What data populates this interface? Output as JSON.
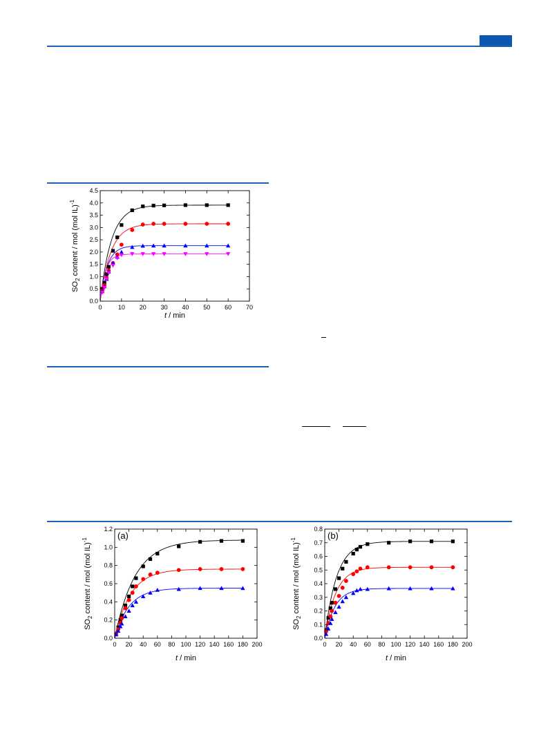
{
  "page": {
    "brand_color": "#0b57b2",
    "rule_color": "#1f5fb0"
  },
  "chart_data": [
    {
      "id": "fig1",
      "type": "line",
      "panel_label": "",
      "xlabel_italic": "t",
      "xlabel_rest": " / min",
      "ylabel_main": "SO",
      "ylabel_sub": "2",
      "ylabel_mid": " content / mol (mol IL)",
      "ylabel_sup": "-1",
      "xlim": [
        0,
        70
      ],
      "ylim": [
        0,
        4.5
      ],
      "xticks": [
        0,
        10,
        20,
        30,
        40,
        50,
        60,
        70
      ],
      "yticks": [
        0.0,
        0.5,
        1.0,
        1.5,
        2.0,
        2.5,
        3.0,
        3.5,
        4.0,
        4.5
      ],
      "xtick_labels": [
        "0",
        "10",
        "20",
        "30",
        "40",
        "50",
        "60",
        "70"
      ],
      "ytick_labels": [
        "0.0",
        "0.5",
        "1.0",
        "1.5",
        "2.0",
        "2.5",
        "3.0",
        "3.5",
        "4.0",
        "4.5"
      ],
      "grid": false,
      "series": [
        {
          "color": "#000000",
          "marker": "square",
          "equilibrium": 3.91,
          "k": 0.19,
          "x": [
            1,
            2,
            3,
            4,
            6,
            8,
            10,
            15,
            20,
            25,
            30,
            40,
            50,
            60
          ],
          "y": [
            0.5,
            0.75,
            1.1,
            1.4,
            2.05,
            2.6,
            3.1,
            3.7,
            3.86,
            3.89,
            3.9,
            3.91,
            3.91,
            3.91
          ]
        },
        {
          "color": "#ff0000",
          "marker": "circle",
          "equilibrium": 3.15,
          "k": 0.2,
          "x": [
            1,
            2,
            3,
            4,
            6,
            8,
            10,
            15,
            20,
            25,
            30,
            40,
            50,
            60
          ],
          "y": [
            0.45,
            0.65,
            0.95,
            1.25,
            1.55,
            1.9,
            2.3,
            2.9,
            3.12,
            3.15,
            3.15,
            3.15,
            3.15,
            3.15
          ]
        },
        {
          "color": "#0000ff",
          "marker": "triangle-up",
          "equilibrium": 2.26,
          "k": 0.3,
          "x": [
            1,
            2,
            3,
            4,
            6,
            8,
            10,
            15,
            20,
            25,
            30,
            40,
            50,
            60
          ],
          "y": [
            0.4,
            0.6,
            0.9,
            1.2,
            1.55,
            1.8,
            2.0,
            2.2,
            2.25,
            2.26,
            2.26,
            2.26,
            2.26,
            2.26
          ]
        },
        {
          "color": "#ff00ff",
          "marker": "triangle-down",
          "equilibrium": 1.92,
          "k": 0.4,
          "x": [
            1,
            2,
            3,
            4,
            6,
            8,
            10,
            15,
            20,
            25,
            30,
            40,
            50,
            60
          ],
          "y": [
            0.35,
            0.55,
            0.9,
            1.15,
            1.45,
            1.75,
            1.88,
            1.92,
            1.92,
            1.92,
            1.92,
            1.92,
            1.92,
            1.92
          ]
        }
      ]
    },
    {
      "id": "fig2a",
      "type": "line",
      "panel_label": "(a)",
      "xlabel_italic": "t",
      "xlabel_rest": " / min",
      "ylabel_main": "SO",
      "ylabel_sub": "2",
      "ylabel_mid": " content / mol (mol IL)",
      "ylabel_sup": "-1",
      "xlim": [
        0,
        200
      ],
      "ylim": [
        0,
        1.2
      ],
      "xticks": [
        0,
        20,
        40,
        60,
        80,
        100,
        120,
        140,
        160,
        180,
        200
      ],
      "yticks": [
        0.0,
        0.2,
        0.4,
        0.6,
        0.8,
        1.0,
        1.2
      ],
      "xtick_labels": [
        "0",
        "20",
        "40",
        "60",
        "80",
        "100",
        "120",
        "140",
        "160",
        "180",
        "200"
      ],
      "ytick_labels": [
        "0.0",
        "0.2",
        "0.4",
        "0.6",
        "0.8",
        "1.0",
        "1.2"
      ],
      "grid": false,
      "series": [
        {
          "color": "#000000",
          "marker": "square",
          "equilibrium": 1.08,
          "k": 0.035,
          "x": [
            2,
            5,
            8,
            10,
            15,
            20,
            25,
            30,
            40,
            50,
            60,
            90,
            120,
            150,
            180
          ],
          "y": [
            0.05,
            0.12,
            0.2,
            0.25,
            0.36,
            0.46,
            0.57,
            0.66,
            0.79,
            0.87,
            0.93,
            1.01,
            1.06,
            1.07,
            1.07
          ]
        },
        {
          "color": "#ff0000",
          "marker": "circle",
          "equilibrium": 0.76,
          "k": 0.045,
          "x": [
            2,
            5,
            8,
            10,
            15,
            20,
            25,
            30,
            40,
            50,
            60,
            90,
            120,
            150,
            180
          ],
          "y": [
            0.05,
            0.1,
            0.17,
            0.22,
            0.33,
            0.42,
            0.5,
            0.57,
            0.65,
            0.7,
            0.72,
            0.75,
            0.76,
            0.76,
            0.76
          ]
        },
        {
          "color": "#0000ff",
          "marker": "triangle-up",
          "equilibrium": 0.55,
          "k": 0.05,
          "x": [
            2,
            5,
            8,
            10,
            15,
            20,
            25,
            30,
            40,
            50,
            60,
            90,
            120,
            150,
            180
          ],
          "y": [
            0.04,
            0.08,
            0.13,
            0.16,
            0.24,
            0.3,
            0.36,
            0.4,
            0.46,
            0.5,
            0.53,
            0.54,
            0.55,
            0.55,
            0.55
          ]
        }
      ]
    },
    {
      "id": "fig2b",
      "type": "line",
      "panel_label": "(b)",
      "xlabel_italic": "t",
      "xlabel_rest": " / min",
      "ylabel_main": "SO",
      "ylabel_sub": "2",
      "ylabel_mid": " content / mol (mol IL)",
      "ylabel_sup": "-1",
      "xlim": [
        0,
        200
      ],
      "ylim": [
        0,
        0.8
      ],
      "xticks": [
        0,
        20,
        40,
        60,
        80,
        100,
        120,
        140,
        160,
        180,
        200
      ],
      "yticks": [
        0.0,
        0.1,
        0.2,
        0.3,
        0.4,
        0.5,
        0.6,
        0.7,
        0.8
      ],
      "xtick_labels": [
        "0",
        "20",
        "40",
        "60",
        "80",
        "100",
        "120",
        "140",
        "160",
        "180",
        "200"
      ],
      "ytick_labels": [
        "0.0",
        "0.1",
        "0.2",
        "0.3",
        "0.4",
        "0.5",
        "0.6",
        "0.7",
        "0.8"
      ],
      "grid": false,
      "series": [
        {
          "color": "#000000",
          "marker": "square",
          "equilibrium": 0.71,
          "k": 0.06,
          "x": [
            2,
            5,
            8,
            10,
            15,
            20,
            25,
            30,
            40,
            45,
            50,
            60,
            90,
            120,
            150,
            180
          ],
          "y": [
            0.06,
            0.15,
            0.22,
            0.26,
            0.36,
            0.44,
            0.51,
            0.56,
            0.62,
            0.65,
            0.67,
            0.69,
            0.7,
            0.71,
            0.71,
            0.71
          ]
        },
        {
          "color": "#ff0000",
          "marker": "circle",
          "equilibrium": 0.52,
          "k": 0.065,
          "x": [
            2,
            5,
            8,
            10,
            15,
            20,
            25,
            30,
            40,
            45,
            50,
            60,
            90,
            120,
            150,
            180
          ],
          "y": [
            0.05,
            0.11,
            0.16,
            0.2,
            0.26,
            0.31,
            0.37,
            0.42,
            0.47,
            0.49,
            0.51,
            0.52,
            0.52,
            0.52,
            0.52,
            0.52
          ]
        },
        {
          "color": "#0000ff",
          "marker": "triangle-up",
          "equilibrium": 0.365,
          "k": 0.07,
          "x": [
            2,
            5,
            8,
            10,
            15,
            20,
            25,
            30,
            40,
            45,
            50,
            60,
            90,
            120,
            150,
            180
          ],
          "y": [
            0.03,
            0.07,
            0.11,
            0.14,
            0.19,
            0.23,
            0.27,
            0.3,
            0.33,
            0.35,
            0.36,
            0.36,
            0.365,
            0.365,
            0.365,
            0.365
          ]
        }
      ]
    }
  ]
}
